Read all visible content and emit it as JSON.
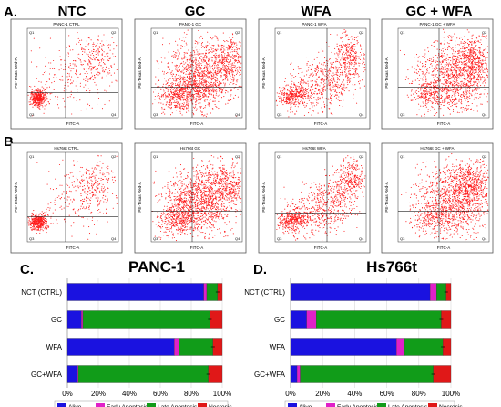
{
  "panel_letters": {
    "a": "A.",
    "b": "B.",
    "c": "C.",
    "d": "D."
  },
  "column_headers": [
    "NTC",
    "GC",
    "WFA",
    "GC + WFA"
  ],
  "flow_quadrant_labels": [
    "Q1",
    "Q2",
    "Q3",
    "Q4"
  ],
  "flow_axis": {
    "x": "FITC-A",
    "y": "PE-Texas Red-A"
  },
  "flow_row_a_titles": [
    "PANC-1 CTRL",
    "PANC-1 GC",
    "PANC-1 WFA",
    "PANC-1 GC + WFA"
  ],
  "flow_row_b_titles": [
    "Hs766t CTRL",
    "Hs766t GC",
    "Hs766t WFA",
    "Hs766t GC + WFA"
  ],
  "colors": {
    "alive": "#1a12e0",
    "early": "#e020c8",
    "late": "#119c19",
    "necrosis": "#e01818",
    "dots": "#ff1a1a"
  },
  "chart_data": [
    {
      "type": "bar",
      "orientation": "horizontal",
      "stacked": true,
      "title": "PANC-1",
      "categories": [
        "NCT (CTRL)",
        "GC",
        "WFA",
        "GC+WFA"
      ],
      "series": [
        {
          "name": "Alive",
          "values": [
            88,
            9,
            69,
            6
          ]
        },
        {
          "name": "Early Apoptosis",
          "values": [
            2,
            1,
            3,
            1
          ]
        },
        {
          "name": "Late Apoptosis",
          "values": [
            7,
            82,
            22,
            84
          ]
        },
        {
          "name": "Necrosis",
          "values": [
            3,
            8,
            6,
            9
          ]
        }
      ],
      "xlim": [
        0,
        100
      ],
      "xticks": [
        "0%",
        "20%",
        "40%",
        "60%",
        "80%",
        "100%"
      ],
      "legend": "bottom"
    },
    {
      "type": "bar",
      "orientation": "horizontal",
      "stacked": true,
      "title": "Hs766t",
      "categories": [
        "NCT (CTRL)",
        "GC",
        "WFA",
        "GC+WFA"
      ],
      "series": [
        {
          "name": "Alive",
          "values": [
            87,
            10,
            66,
            4
          ]
        },
        {
          "name": "Early Apoptosis",
          "values": [
            4,
            6,
            5,
            2
          ]
        },
        {
          "name": "Late Apoptosis",
          "values": [
            6,
            78,
            24,
            83
          ]
        },
        {
          "name": "Necrosis",
          "values": [
            3,
            6,
            5,
            11
          ]
        }
      ],
      "xlim": [
        0,
        100
      ],
      "xticks": [
        "0%",
        "20%",
        "40%",
        "60%",
        "80%",
        "100%"
      ],
      "legend": "bottom"
    }
  ]
}
